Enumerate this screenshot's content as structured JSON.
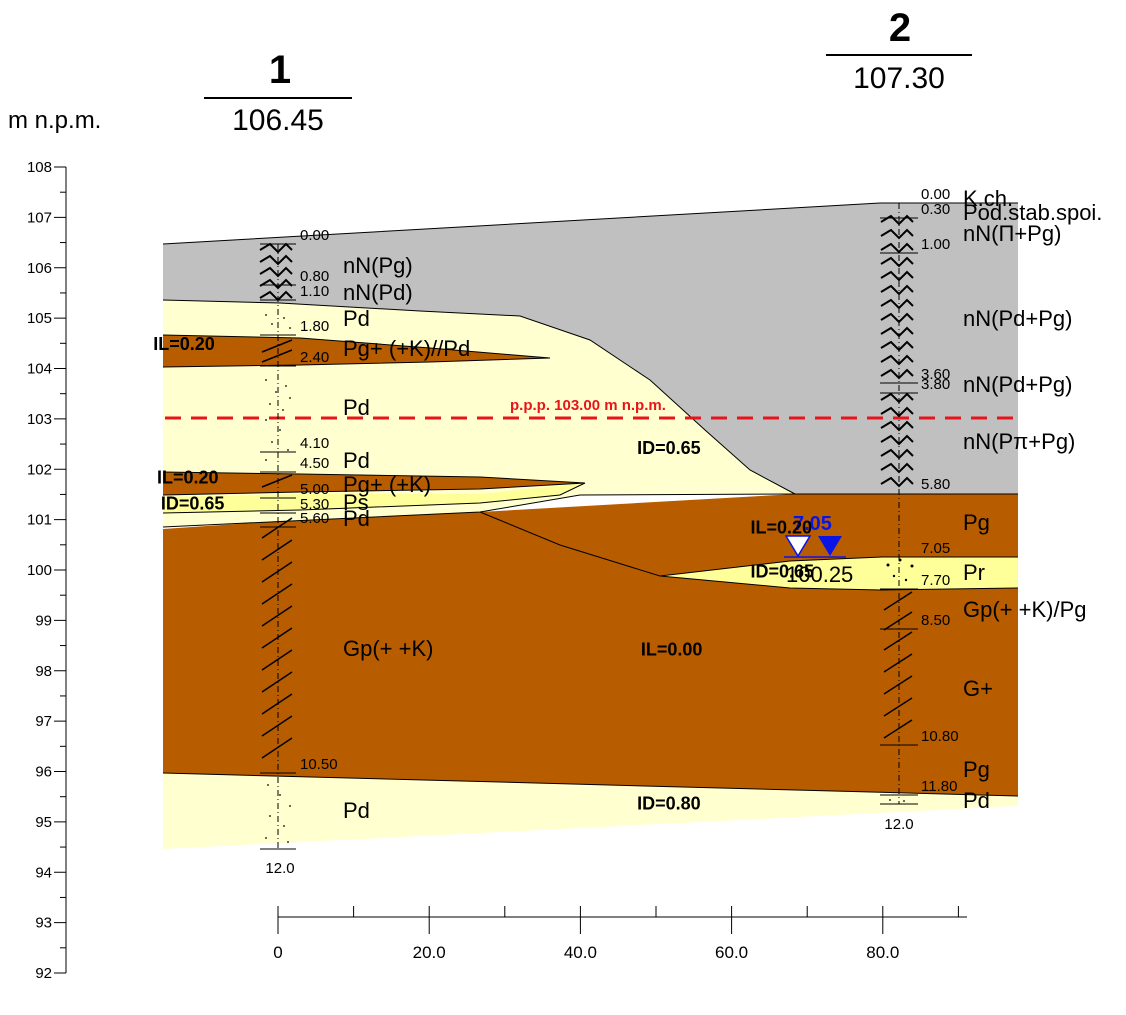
{
  "header": {
    "elevation_unit": "m n.p.m."
  },
  "boreholes": [
    {
      "number": "1",
      "ground_elevation": "106.45",
      "distance": 0,
      "final_depth": "12.0",
      "depth_labels": [
        "0.00",
        "0.80",
        "1.10",
        "1.80",
        "2.40",
        "4.10",
        "4.50",
        "5.00",
        "5.30",
        "5.60",
        "10.50"
      ],
      "layers": [
        {
          "name": "nN(Pg)",
          "from": 0.0,
          "to": 0.8
        },
        {
          "name": "nN(Pd)",
          "from": 0.8,
          "to": 1.1
        },
        {
          "name": "Pd",
          "from": 1.1,
          "to": 1.8
        },
        {
          "name": "Pg+  (+K)//Pd",
          "from": 1.8,
          "to": 2.4
        },
        {
          "name": "Pd",
          "from": 2.4,
          "to": 4.1
        },
        {
          "name": "Pd",
          "from": 4.1,
          "to": 4.5
        },
        {
          "name": "Pg+  (+K)",
          "from": 4.5,
          "to": 5.0
        },
        {
          "name": "Ps",
          "from": 5.0,
          "to": 5.3
        },
        {
          "name": "Pd",
          "from": 5.3,
          "to": 5.6
        },
        {
          "name": "Gp(+  +K)",
          "from": 5.6,
          "to": 10.5
        },
        {
          "name": "Pd",
          "from": 10.5,
          "to": 12.0
        }
      ]
    },
    {
      "number": "2",
      "ground_elevation": "107.30",
      "distance": 82,
      "final_depth": "12.0",
      "depth_labels": [
        "0.00",
        "0.30",
        "1.00",
        "3.60",
        "3.80",
        "5.80",
        "7.05",
        "7.70",
        "8.50",
        "10.80",
        "11.80"
      ],
      "layers": [
        {
          "name": "K.ch.",
          "from": 0.0,
          "to": 0.0
        },
        {
          "name": "Pod.stab.spoi.",
          "from": 0.0,
          "to": 0.3
        },
        {
          "name": "nN(Π+Pg)",
          "from": 0.3,
          "to": 1.0
        },
        {
          "name": "nN(Pd+Pg)",
          "from": 1.0,
          "to": 3.6
        },
        {
          "name": "nN(Pd+Pg)",
          "from": 3.6,
          "to": 3.8
        },
        {
          "name": "nN(Pπ+Pg)",
          "from": 3.8,
          "to": 5.8
        },
        {
          "name": "Pg",
          "from": 5.8,
          "to": 7.05
        },
        {
          "name": "Pr",
          "from": 7.05,
          "to": 7.7
        },
        {
          "name": "Gp(+  +K)/Pg",
          "from": 7.7,
          "to": 8.5
        },
        {
          "name": "G+",
          "from": 8.5,
          "to": 10.8
        },
        {
          "name": "Pg",
          "from": 10.8,
          "to": 11.8
        },
        {
          "name": "Pd",
          "from": 11.8,
          "to": 12.0
        }
      ]
    }
  ],
  "parameters": [
    {
      "text": "IL=0.20",
      "x": -16.5,
      "y": 104.37
    },
    {
      "text": "IL=0.20",
      "x": -16,
      "y": 101.72
    },
    {
      "text": "ID=0.65",
      "x": -15.5,
      "y": 101.2
    },
    {
      "text": "ID=0.65",
      "x": 47.5,
      "y": 102.3
    },
    {
      "text": "IL=0.20",
      "x": 62.5,
      "y": 100.72
    },
    {
      "text": "ID=0.65",
      "x": 62.5,
      "y": 99.85
    },
    {
      "text": "IL=0.00",
      "x": 48,
      "y": 98.3
    },
    {
      "text": "ID=0.80",
      "x": 47.5,
      "y": 95.25
    }
  ],
  "water_table": {
    "label": "p.p.p. 103.00 m n.p.m.",
    "elevation": 103.0
  },
  "groundwater": {
    "encountered_depth": "7.05",
    "stabilized_elevation": "100.25"
  },
  "axis": {
    "y_min": 92,
    "y_max": 108,
    "y_ticks": [
      "92",
      "93",
      "94",
      "95",
      "96",
      "97",
      "98",
      "99",
      "100",
      "101",
      "102",
      "103",
      "104",
      "105",
      "106",
      "107",
      "108"
    ],
    "x_min": 0,
    "x_max": 95,
    "x_ticks": [
      "0",
      "20.0",
      "40.0",
      "60.0",
      "80.0"
    ]
  },
  "colors": {
    "fill_made_ground": "#c0c0c0",
    "fill_sand": "#ffffd0",
    "fill_clay": "#b85c00",
    "fill_gravel_sand": "#ffff99",
    "water_line": "#e8141b",
    "groundwater": "#0a14e6"
  }
}
